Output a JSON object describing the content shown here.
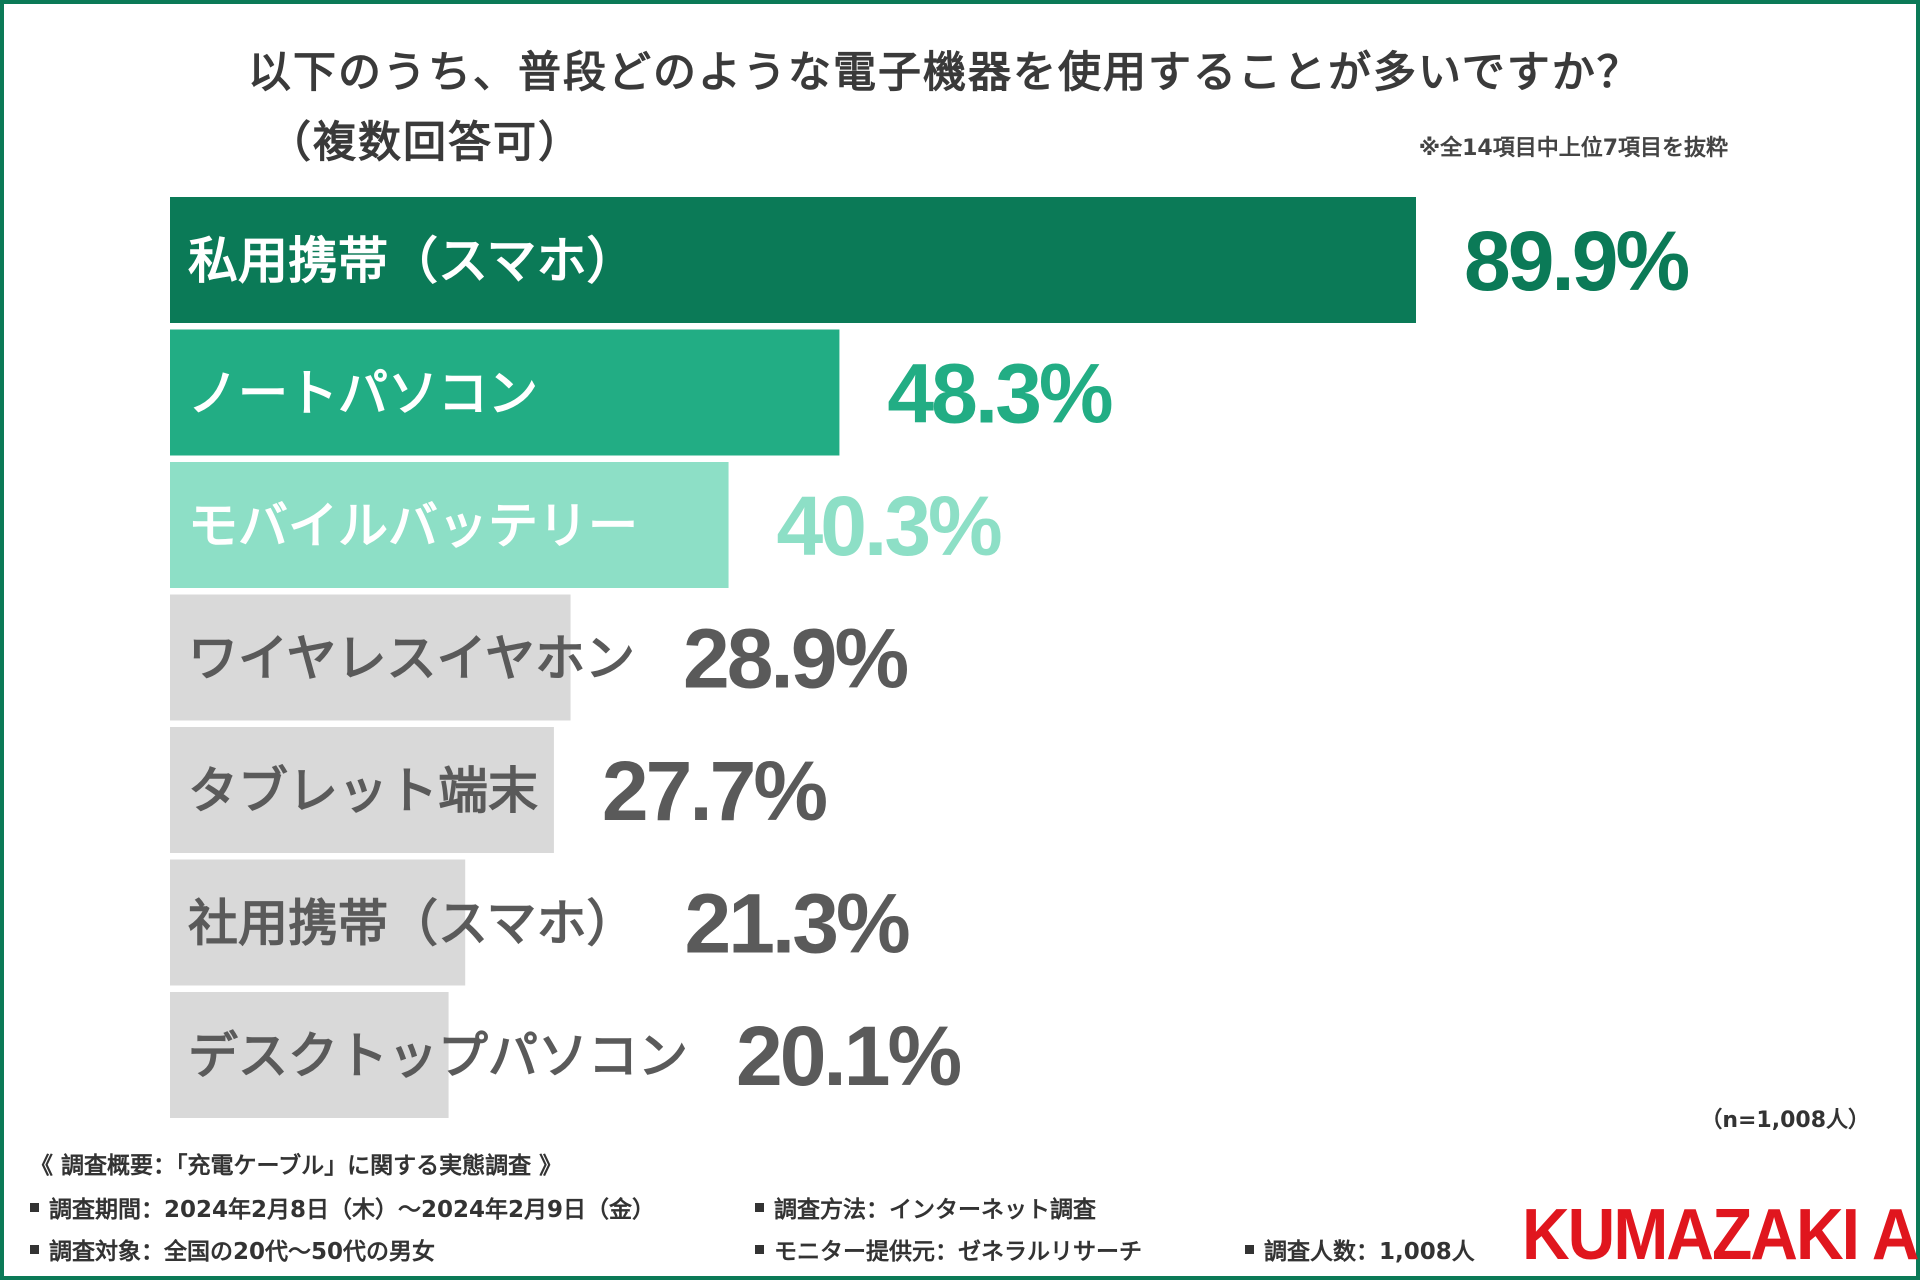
{
  "colors": {
    "frame": "#0b7a57",
    "bar_top1": "#0b7a57",
    "bar_top2": "#22ad84",
    "bar_top3": "#8ddfc6",
    "bar_gray": "#d9d9d9",
    "gray_text": "#5a5a5a",
    "logo": "#e0161e"
  },
  "title_line1": "以下のうち、普段どのような電子機器を使用することが多いですか？",
  "title_line2": "（複数回答可）",
  "note": "※全14項目中上位7項目を抜粋",
  "chart_data": {
    "type": "bar",
    "orientation": "horizontal",
    "title": "以下のうち、普段どのような電子機器を使用することが多いですか？（複数回答可）",
    "xlim": [
      0,
      100
    ],
    "categories": [
      "私用携帯（スマホ）",
      "ノートパソコン",
      "モバイルバッテリー",
      "ワイヤレスイヤホン",
      "タブレット端末",
      "社用携帯（スマホ）",
      "デスクトップパソコン"
    ],
    "values": [
      89.9,
      48.3,
      40.3,
      28.9,
      27.7,
      21.3,
      20.1
    ],
    "value_labels": [
      "89.9%",
      "48.3%",
      "40.3%",
      "28.9%",
      "27.7%",
      "21.3%",
      "20.1%"
    ],
    "unit": "%"
  },
  "sample_size": "（n=1,008人）",
  "survey": {
    "heading": "《 調査概要：「充電ケーブル」に関する実態調査 》",
    "period": "調査期間：2024年2月8日（木）〜2024年2月9日（金）",
    "method": "調査方法：インターネット調査",
    "target": "調査対象：全国の20代〜50代の男女",
    "provider": "モニター提供元：ゼネラルリサーチ",
    "count": "調査人数：1,008人"
  },
  "logo": "KUMAZAKI AIM"
}
